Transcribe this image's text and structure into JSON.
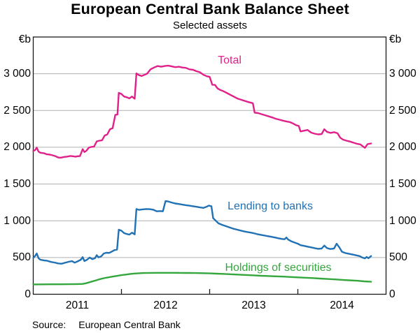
{
  "title": "European Central Bank Balance Sheet",
  "subtitle": "Selected assets",
  "source": {
    "label": "Source:",
    "text": "European Central Bank"
  },
  "chart_data": {
    "type": "line",
    "title": "European Central Bank Balance Sheet",
    "subtitle": "Selected assets",
    "unit_left": "€b",
    "unit_right": "€b",
    "xlabel": "",
    "ylabel": "€b",
    "x_range": [
      2011.0,
      2015.0
    ],
    "ylim": [
      0,
      3500
    ],
    "grid": true,
    "gridline_color": "#b0b0b0",
    "frame_color": "#1a1a1a",
    "y_ticks": [
      0,
      500,
      1000,
      1500,
      2000,
      2500,
      3000
    ],
    "y_tick_labels": [
      "0",
      "500",
      "1 000",
      "1 500",
      "2 000",
      "2 500",
      "3 000"
    ],
    "x_tick_years": [
      2012,
      2013,
      2014
    ],
    "x_year_labels": [
      "2011",
      "2012",
      "2013",
      "2014"
    ],
    "legend_position": "inline-labels",
    "series": [
      {
        "name": "Total",
        "color": "#e0218a",
        "points": [
          [
            2011.0,
            1950
          ],
          [
            2011.02,
            1960
          ],
          [
            2011.04,
            1995
          ],
          [
            2011.06,
            1940
          ],
          [
            2011.08,
            1925
          ],
          [
            2011.12,
            1920
          ],
          [
            2011.15,
            1905
          ],
          [
            2011.19,
            1900
          ],
          [
            2011.22,
            1890
          ],
          [
            2011.25,
            1880
          ],
          [
            2011.28,
            1862
          ],
          [
            2011.31,
            1858
          ],
          [
            2011.35,
            1868
          ],
          [
            2011.38,
            1872
          ],
          [
            2011.42,
            1882
          ],
          [
            2011.45,
            1878
          ],
          [
            2011.48,
            1872
          ],
          [
            2011.5,
            1878
          ],
          [
            2011.53,
            1880
          ],
          [
            2011.56,
            1975
          ],
          [
            2011.58,
            1935
          ],
          [
            2011.6,
            1950
          ],
          [
            2011.63,
            1995
          ],
          [
            2011.66,
            2005
          ],
          [
            2011.69,
            2010
          ],
          [
            2011.72,
            2080
          ],
          [
            2011.75,
            2090
          ],
          [
            2011.78,
            2095
          ],
          [
            2011.81,
            2160
          ],
          [
            2011.84,
            2175
          ],
          [
            2011.87,
            2245
          ],
          [
            2011.9,
            2260
          ],
          [
            2011.93,
            2440
          ],
          [
            2011.955,
            2445
          ],
          [
            2011.97,
            2740
          ],
          [
            2012.0,
            2725
          ],
          [
            2012.03,
            2690
          ],
          [
            2012.06,
            2680
          ],
          [
            2012.09,
            2665
          ],
          [
            2012.12,
            2690
          ],
          [
            2012.15,
            2660
          ],
          [
            2012.17,
            3005
          ],
          [
            2012.2,
            2980
          ],
          [
            2012.23,
            2970
          ],
          [
            2012.26,
            2985
          ],
          [
            2012.29,
            3000
          ],
          [
            2012.33,
            3060
          ],
          [
            2012.37,
            3085
          ],
          [
            2012.41,
            3105
          ],
          [
            2012.45,
            3095
          ],
          [
            2012.49,
            3105
          ],
          [
            2012.53,
            3110
          ],
          [
            2012.57,
            3100
          ],
          [
            2012.61,
            3090
          ],
          [
            2012.65,
            3095
          ],
          [
            2012.69,
            3085
          ],
          [
            2012.73,
            3080
          ],
          [
            2012.77,
            3060
          ],
          [
            2012.81,
            3055
          ],
          [
            2012.85,
            3035
          ],
          [
            2012.89,
            3020
          ],
          [
            2012.93,
            2985
          ],
          [
            2012.97,
            2965
          ],
          [
            2013.0,
            2958
          ],
          [
            2013.03,
            2850
          ],
          [
            2013.06,
            2848
          ],
          [
            2013.09,
            2800
          ],
          [
            2013.12,
            2780
          ],
          [
            2013.16,
            2760
          ],
          [
            2013.2,
            2735
          ],
          [
            2013.24,
            2710
          ],
          [
            2013.28,
            2685
          ],
          [
            2013.32,
            2660
          ],
          [
            2013.36,
            2645
          ],
          [
            2013.4,
            2630
          ],
          [
            2013.44,
            2615
          ],
          [
            2013.47,
            2605
          ],
          [
            2013.49,
            2600
          ],
          [
            2013.51,
            2470
          ],
          [
            2013.55,
            2465
          ],
          [
            2013.59,
            2450
          ],
          [
            2013.63,
            2435
          ],
          [
            2013.67,
            2420
          ],
          [
            2013.71,
            2405
          ],
          [
            2013.75,
            2388
          ],
          [
            2013.79,
            2375
          ],
          [
            2013.83,
            2362
          ],
          [
            2013.87,
            2352
          ],
          [
            2013.91,
            2342
          ],
          [
            2013.95,
            2320
          ],
          [
            2013.98,
            2300
          ],
          [
            2014.01,
            2290
          ],
          [
            2014.03,
            2215
          ],
          [
            2014.07,
            2225
          ],
          [
            2014.11,
            2235
          ],
          [
            2014.15,
            2200
          ],
          [
            2014.19,
            2185
          ],
          [
            2014.23,
            2175
          ],
          [
            2014.27,
            2180
          ],
          [
            2014.3,
            2245
          ],
          [
            2014.33,
            2210
          ],
          [
            2014.37,
            2195
          ],
          [
            2014.41,
            2205
          ],
          [
            2014.45,
            2190
          ],
          [
            2014.48,
            2130
          ],
          [
            2014.51,
            2105
          ],
          [
            2014.55,
            2090
          ],
          [
            2014.59,
            2078
          ],
          [
            2014.63,
            2062
          ],
          [
            2014.67,
            2048
          ],
          [
            2014.71,
            2038
          ],
          [
            2014.74,
            2010
          ],
          [
            2014.76,
            1992
          ],
          [
            2014.79,
            2042
          ],
          [
            2014.83,
            2052
          ]
        ]
      },
      {
        "name": "Lending to banks",
        "color": "#2171b5",
        "points": [
          [
            2011.0,
            495
          ],
          [
            2011.02,
            520
          ],
          [
            2011.04,
            555
          ],
          [
            2011.06,
            490
          ],
          [
            2011.08,
            470
          ],
          [
            2011.12,
            462
          ],
          [
            2011.16,
            455
          ],
          [
            2011.2,
            440
          ],
          [
            2011.24,
            432
          ],
          [
            2011.28,
            420
          ],
          [
            2011.32,
            415
          ],
          [
            2011.36,
            428
          ],
          [
            2011.4,
            442
          ],
          [
            2011.44,
            450
          ],
          [
            2011.47,
            430
          ],
          [
            2011.5,
            445
          ],
          [
            2011.54,
            470
          ],
          [
            2011.56,
            505
          ],
          [
            2011.58,
            452
          ],
          [
            2011.61,
            470
          ],
          [
            2011.64,
            500
          ],
          [
            2011.67,
            478
          ],
          [
            2011.7,
            490
          ],
          [
            2011.72,
            532
          ],
          [
            2011.74,
            502
          ],
          [
            2011.77,
            515
          ],
          [
            2011.8,
            555
          ],
          [
            2011.83,
            565
          ],
          [
            2011.86,
            562
          ],
          [
            2011.89,
            580
          ],
          [
            2011.92,
            600
          ],
          [
            2011.95,
            608
          ],
          [
            2011.97,
            879
          ],
          [
            2012.0,
            864
          ],
          [
            2012.03,
            832
          ],
          [
            2012.06,
            820
          ],
          [
            2012.09,
            812
          ],
          [
            2012.12,
            838
          ],
          [
            2012.15,
            815
          ],
          [
            2012.17,
            1160
          ],
          [
            2012.2,
            1148
          ],
          [
            2012.24,
            1155
          ],
          [
            2012.28,
            1160
          ],
          [
            2012.32,
            1158
          ],
          [
            2012.36,
            1150
          ],
          [
            2012.4,
            1128
          ],
          [
            2012.44,
            1132
          ],
          [
            2012.47,
            1128
          ],
          [
            2012.5,
            1268
          ],
          [
            2012.53,
            1262
          ],
          [
            2012.57,
            1248
          ],
          [
            2012.61,
            1235
          ],
          [
            2012.65,
            1228
          ],
          [
            2012.69,
            1220
          ],
          [
            2012.73,
            1212
          ],
          [
            2012.77,
            1205
          ],
          [
            2012.81,
            1198
          ],
          [
            2012.85,
            1190
          ],
          [
            2012.89,
            1182
          ],
          [
            2012.93,
            1175
          ],
          [
            2012.96,
            1188
          ],
          [
            2012.99,
            1205
          ],
          [
            2013.02,
            1198
          ],
          [
            2013.04,
            1035
          ],
          [
            2013.07,
            1000
          ],
          [
            2013.1,
            965
          ],
          [
            2013.14,
            945
          ],
          [
            2013.18,
            928
          ],
          [
            2013.22,
            912
          ],
          [
            2013.26,
            895
          ],
          [
            2013.3,
            882
          ],
          [
            2013.34,
            870
          ],
          [
            2013.38,
            858
          ],
          [
            2013.42,
            848
          ],
          [
            2013.46,
            840
          ],
          [
            2013.5,
            830
          ],
          [
            2013.54,
            818
          ],
          [
            2013.58,
            808
          ],
          [
            2013.62,
            800
          ],
          [
            2013.66,
            790
          ],
          [
            2013.7,
            782
          ],
          [
            2013.74,
            772
          ],
          [
            2013.78,
            762
          ],
          [
            2013.82,
            752
          ],
          [
            2013.85,
            748
          ],
          [
            2013.87,
            772
          ],
          [
            2013.89,
            745
          ],
          [
            2013.93,
            718
          ],
          [
            2013.97,
            700
          ],
          [
            2014.0,
            688
          ],
          [
            2014.03,
            668
          ],
          [
            2014.07,
            658
          ],
          [
            2014.11,
            648
          ],
          [
            2014.15,
            638
          ],
          [
            2014.19,
            628
          ],
          [
            2014.23,
            618
          ],
          [
            2014.27,
            622
          ],
          [
            2014.3,
            662
          ],
          [
            2014.33,
            628
          ],
          [
            2014.37,
            615
          ],
          [
            2014.41,
            622
          ],
          [
            2014.44,
            688
          ],
          [
            2014.47,
            638
          ],
          [
            2014.5,
            578
          ],
          [
            2014.54,
            560
          ],
          [
            2014.58,
            550
          ],
          [
            2014.62,
            540
          ],
          [
            2014.66,
            530
          ],
          [
            2014.7,
            520
          ],
          [
            2014.73,
            500
          ],
          [
            2014.76,
            488
          ],
          [
            2014.78,
            508
          ],
          [
            2014.8,
            490
          ],
          [
            2014.83,
            520
          ]
        ]
      },
      {
        "name": "Holdings of securities",
        "color": "#33a63c",
        "points": [
          [
            2011.0,
            134
          ],
          [
            2011.1,
            135
          ],
          [
            2011.2,
            136
          ],
          [
            2011.3,
            136
          ],
          [
            2011.4,
            137
          ],
          [
            2011.5,
            139
          ],
          [
            2011.56,
            141
          ],
          [
            2011.6,
            150
          ],
          [
            2011.65,
            168
          ],
          [
            2011.7,
            185
          ],
          [
            2011.75,
            203
          ],
          [
            2011.8,
            218
          ],
          [
            2011.85,
            230
          ],
          [
            2011.9,
            240
          ],
          [
            2011.95,
            250
          ],
          [
            2012.0,
            260
          ],
          [
            2012.05,
            268
          ],
          [
            2012.1,
            276
          ],
          [
            2012.15,
            282
          ],
          [
            2012.2,
            286
          ],
          [
            2012.25,
            289
          ],
          [
            2012.33,
            291
          ],
          [
            2012.42,
            292
          ],
          [
            2012.5,
            292
          ],
          [
            2012.58,
            292
          ],
          [
            2012.67,
            291
          ],
          [
            2012.75,
            290
          ],
          [
            2012.83,
            289
          ],
          [
            2012.92,
            287
          ],
          [
            2013.0,
            284
          ],
          [
            2013.08,
            280
          ],
          [
            2013.17,
            276
          ],
          [
            2013.25,
            272
          ],
          [
            2013.33,
            267
          ],
          [
            2013.42,
            262
          ],
          [
            2013.5,
            257
          ],
          [
            2013.58,
            252
          ],
          [
            2013.67,
            248
          ],
          [
            2013.75,
            244
          ],
          [
            2013.83,
            240
          ],
          [
            2013.92,
            235
          ],
          [
            2014.0,
            230
          ],
          [
            2014.08,
            225
          ],
          [
            2014.17,
            220
          ],
          [
            2014.25,
            214
          ],
          [
            2014.33,
            208
          ],
          [
            2014.42,
            202
          ],
          [
            2014.5,
            196
          ],
          [
            2014.58,
            190
          ],
          [
            2014.67,
            184
          ],
          [
            2014.75,
            176
          ],
          [
            2014.83,
            170
          ]
        ]
      }
    ]
  }
}
